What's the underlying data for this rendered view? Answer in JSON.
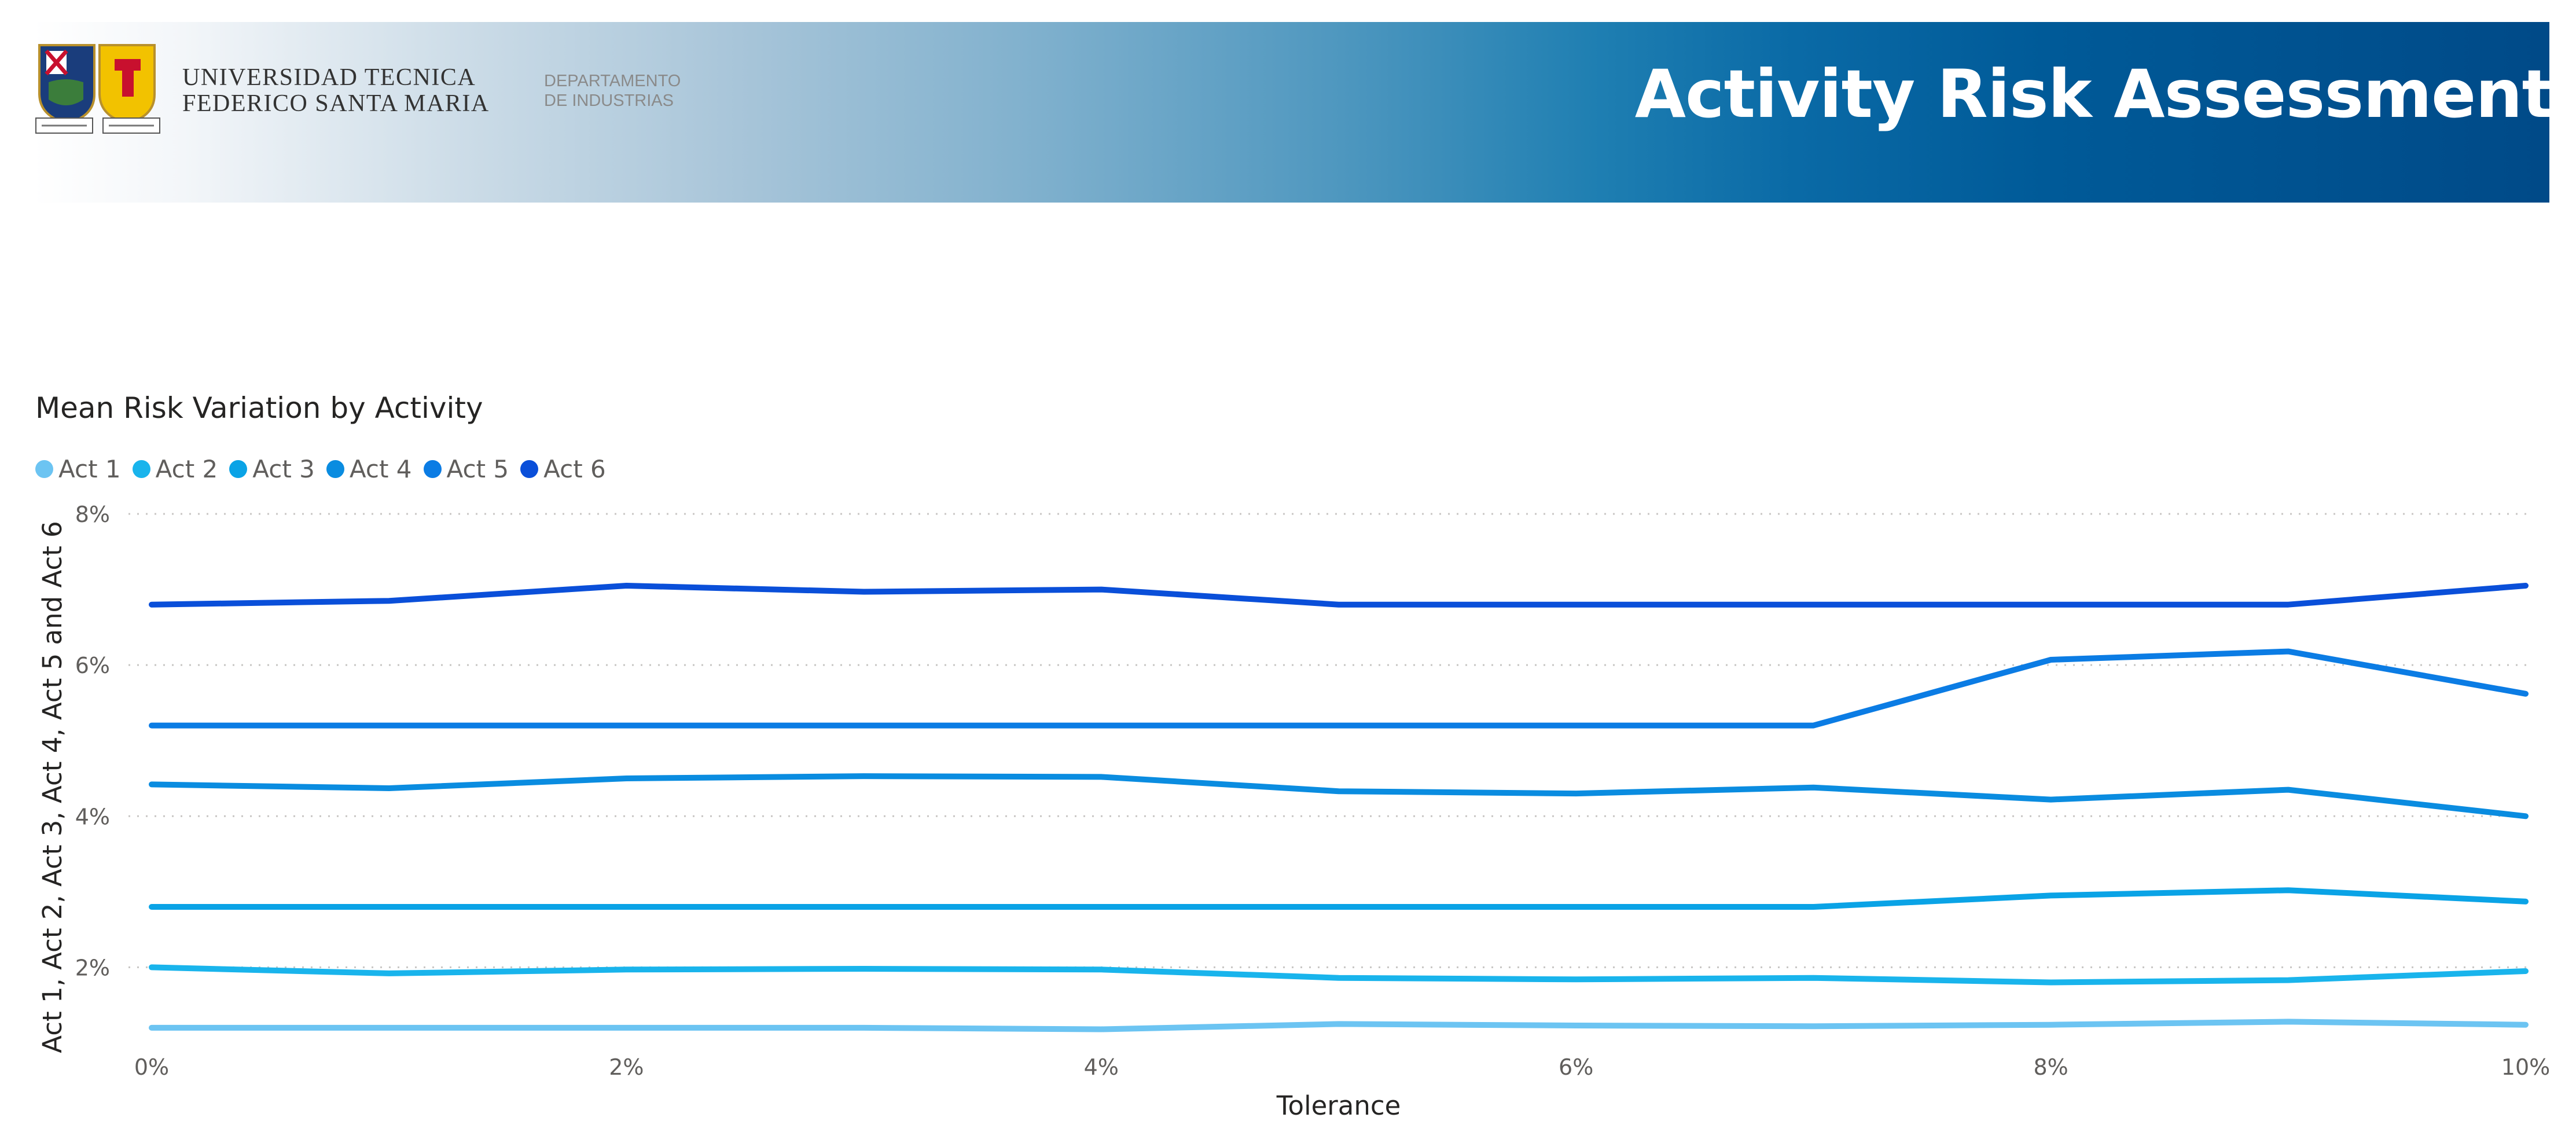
{
  "header": {
    "university_line1": "UNIVERSIDAD TECNICA",
    "university_line2": "FEDERICO SANTA MARIA",
    "department_line1": "DEPARTAMENTO",
    "department_line2": "DE INDUSTRIAS",
    "report_title": "Activity Risk Assessment"
  },
  "chart_data": {
    "type": "line",
    "title": "Mean Risk Variation by Activity",
    "xlabel": "Tolerance",
    "ylabel": "Act 1, Act 2, Act 3, Act 4, Act 5 and Act 6",
    "x": [
      0,
      1,
      2,
      3,
      4,
      5,
      6,
      7,
      8,
      9,
      10
    ],
    "x_ticks": [
      0,
      2,
      4,
      6,
      8,
      10
    ],
    "x_tick_labels": [
      "0%",
      "2%",
      "4%",
      "6%",
      "8%",
      "10%"
    ],
    "xlim": [
      0,
      10
    ],
    "y_ticks": [
      2,
      4,
      6,
      8
    ],
    "y_tick_labels": [
      "2%",
      "4%",
      "6%",
      "8%"
    ],
    "ylim": [
      1.0,
      8.0
    ],
    "grid": true,
    "legend_position": "top-left",
    "series": [
      {
        "name": "Act 1",
        "color": "#6cc4f2",
        "values": [
          1.2,
          1.2,
          1.2,
          1.2,
          1.18,
          1.25,
          1.23,
          1.22,
          1.24,
          1.28,
          1.24
        ]
      },
      {
        "name": "Act 2",
        "color": "#19b4ec",
        "values": [
          2.0,
          1.92,
          1.97,
          1.98,
          1.97,
          1.86,
          1.84,
          1.86,
          1.8,
          1.83,
          1.95
        ]
      },
      {
        "name": "Act 3",
        "color": "#0aa3e6",
        "values": [
          2.8,
          2.8,
          2.8,
          2.8,
          2.8,
          2.8,
          2.8,
          2.8,
          2.95,
          3.02,
          2.87
        ]
      },
      {
        "name": "Act 4",
        "color": "#0a8ce0",
        "values": [
          4.42,
          4.37,
          4.5,
          4.53,
          4.52,
          4.33,
          4.3,
          4.38,
          4.22,
          4.35,
          4.0
        ]
      },
      {
        "name": "Act 5",
        "color": "#0b7ce4",
        "values": [
          5.2,
          5.2,
          5.2,
          5.2,
          5.2,
          5.2,
          5.2,
          5.2,
          6.07,
          6.18,
          5.62
        ]
      },
      {
        "name": "Act 6",
        "color": "#0a4fd9",
        "values": [
          6.8,
          6.85,
          7.05,
          6.97,
          7.0,
          6.8,
          6.8,
          6.8,
          6.8,
          6.8,
          7.05
        ]
      }
    ]
  }
}
